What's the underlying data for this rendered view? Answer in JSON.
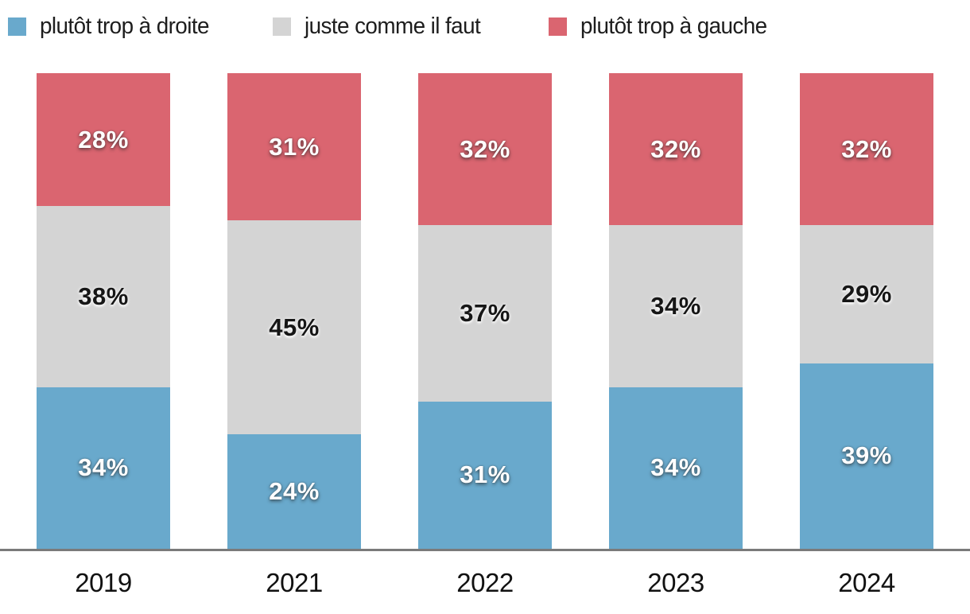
{
  "chart_data": {
    "type": "bar",
    "subtype": "stacked-100-percent",
    "title": "",
    "xlabel": "",
    "ylabel": "",
    "ylim": [
      0,
      100
    ],
    "grid": false,
    "legend_position": "top",
    "value_suffix": "%",
    "categories": [
      "2019",
      "2021",
      "2022",
      "2023",
      "2024"
    ],
    "series": [
      {
        "name": "plutôt trop à droite",
        "color": "#69a9cc",
        "label_style": "light",
        "values": [
          34,
          24,
          31,
          34,
          39
        ]
      },
      {
        "name": "juste comme il faut",
        "color": "#d4d4d4",
        "label_style": "dark",
        "values": [
          38,
          45,
          37,
          34,
          29
        ]
      },
      {
        "name": "plutôt trop à gauche",
        "color": "#da6570",
        "label_style": "light",
        "values": [
          28,
          31,
          32,
          32,
          32
        ]
      }
    ],
    "stack_order_top_to_bottom": [
      "plutôt trop à gauche",
      "juste comme il faut",
      "plutôt trop à droite"
    ]
  },
  "legend": {
    "items": [
      {
        "label": "plutôt trop à droite",
        "color": "#69a9cc"
      },
      {
        "label": "juste comme il faut",
        "color": "#d4d4d4"
      },
      {
        "label": "plutôt trop à gauche",
        "color": "#da6570"
      }
    ]
  },
  "axis": {
    "x_labels": [
      "2019",
      "2021",
      "2022",
      "2023",
      "2024"
    ],
    "line_color": "#7a7a7a"
  }
}
